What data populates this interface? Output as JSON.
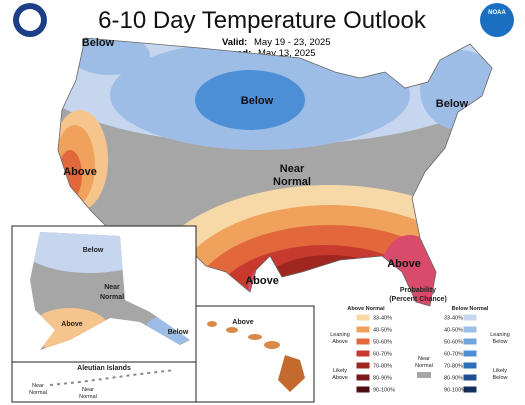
{
  "header": {
    "title": "6-10 Day Temperature Outlook",
    "valid_label": "Valid:",
    "valid": "May 19 - 23, 2025",
    "issued_label": "Issued:",
    "issued": "May 13, 2025",
    "logo": "NOAA"
  },
  "map_labels": {
    "northwest": "Below",
    "central": "Below",
    "northeast": "Below",
    "california": "Above",
    "near_normal": [
      "Near",
      "Normal"
    ],
    "gulf": "Above",
    "southeast": "Above"
  },
  "alaska": {
    "north": "Below",
    "central": [
      "Near",
      "Normal"
    ],
    "south": "Above",
    "southeast": "Below"
  },
  "hawaii": {
    "label": "Above"
  },
  "aleutians": {
    "title": "Aleutian Islands",
    "west": [
      "Near",
      "Normal"
    ],
    "east": [
      "Near",
      "Normal"
    ]
  },
  "legend": {
    "title": "Probability",
    "subtitle": "(Percent Chance)",
    "above_header": "Above Normal",
    "below_header": "Below Normal",
    "above_levels": [
      "33-40%",
      "40-50%",
      "50-60%",
      "60-70%",
      "70-80%",
      "80-90%",
      "90-100%"
    ],
    "below_levels": [
      "33-40%",
      "40-50%",
      "50-60%",
      "60-70%",
      "70-80%",
      "80-90%",
      "90-100%"
    ],
    "leaning_above": [
      "Leaning",
      "Above"
    ],
    "likely_above": [
      "Likely",
      "Above"
    ],
    "near_normal": [
      "Near",
      "Normal"
    ],
    "leaning_below": [
      "Leaning",
      "Below"
    ],
    "likely_below": [
      "Likely",
      "Below"
    ]
  }
}
